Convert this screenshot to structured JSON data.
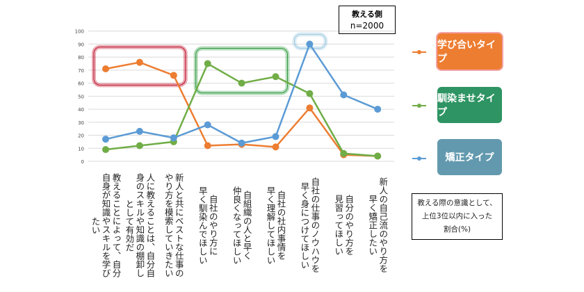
{
  "chart_data": {
    "type": "line",
    "categories": [
      [
        "教えることによって、自分",
        "自身が知識やスキルを学び",
        "たい"
      ],
      [
        "人に教えることは、自分自",
        "身のスキルや知識の棚卸し",
        "として有効だ"
      ],
      [
        "新人と共にベストな仕事の",
        "やり方を模索していきたい"
      ],
      [
        "自社のやり方に",
        "早く馴染んでほしい"
      ],
      [
        "自組織の人と早く",
        "仲良くなってほしい"
      ],
      [
        "自社の社内事情を",
        "早く理解してほしい"
      ],
      [
        "自社の仕事のノウハウを",
        "早く身につけてほしい"
      ],
      [
        "自分のやり方を",
        "見習ってほしい"
      ],
      [
        "新人の自己流のやり方を",
        "早く矯正したい"
      ]
    ],
    "series": [
      {
        "name": "学び合いタイプ",
        "color": "#ED7D31",
        "values": [
          71,
          76,
          66,
          12,
          13,
          11,
          41,
          5,
          4
        ]
      },
      {
        "name": "馴染ませタイプ",
        "color": "#70AD47",
        "values": [
          9,
          12,
          15,
          75,
          60,
          65,
          52,
          6,
          4
        ]
      },
      {
        "name": "矯正タイプ",
        "color": "#5B9BD5",
        "values": [
          17,
          23,
          18,
          28,
          14,
          19,
          90,
          51,
          40
        ]
      }
    ],
    "legend_box_colors": [
      "#ED7D31",
      "#2E9463",
      "#6399AE"
    ],
    "yticks": [
      0,
      10,
      20,
      30,
      40,
      50,
      60,
      70,
      80,
      90,
      100
    ],
    "ylim": [
      0,
      100
    ],
    "grid": true,
    "legend_position": "right",
    "highlights": [
      {
        "series": 0,
        "from": 0,
        "to": 2,
        "color": "#C0102A"
      },
      {
        "series": 1,
        "from": 3,
        "to": 5,
        "color": "#2E9A3E"
      },
      {
        "series": 2,
        "from": 6,
        "to": 6,
        "color": "#9CC8E0"
      }
    ],
    "title_box": {
      "label": "教える側",
      "n": "n=2000"
    },
    "note": [
      "教える際の意識として、",
      "上位3位以内に入った",
      "割合(%)"
    ]
  }
}
